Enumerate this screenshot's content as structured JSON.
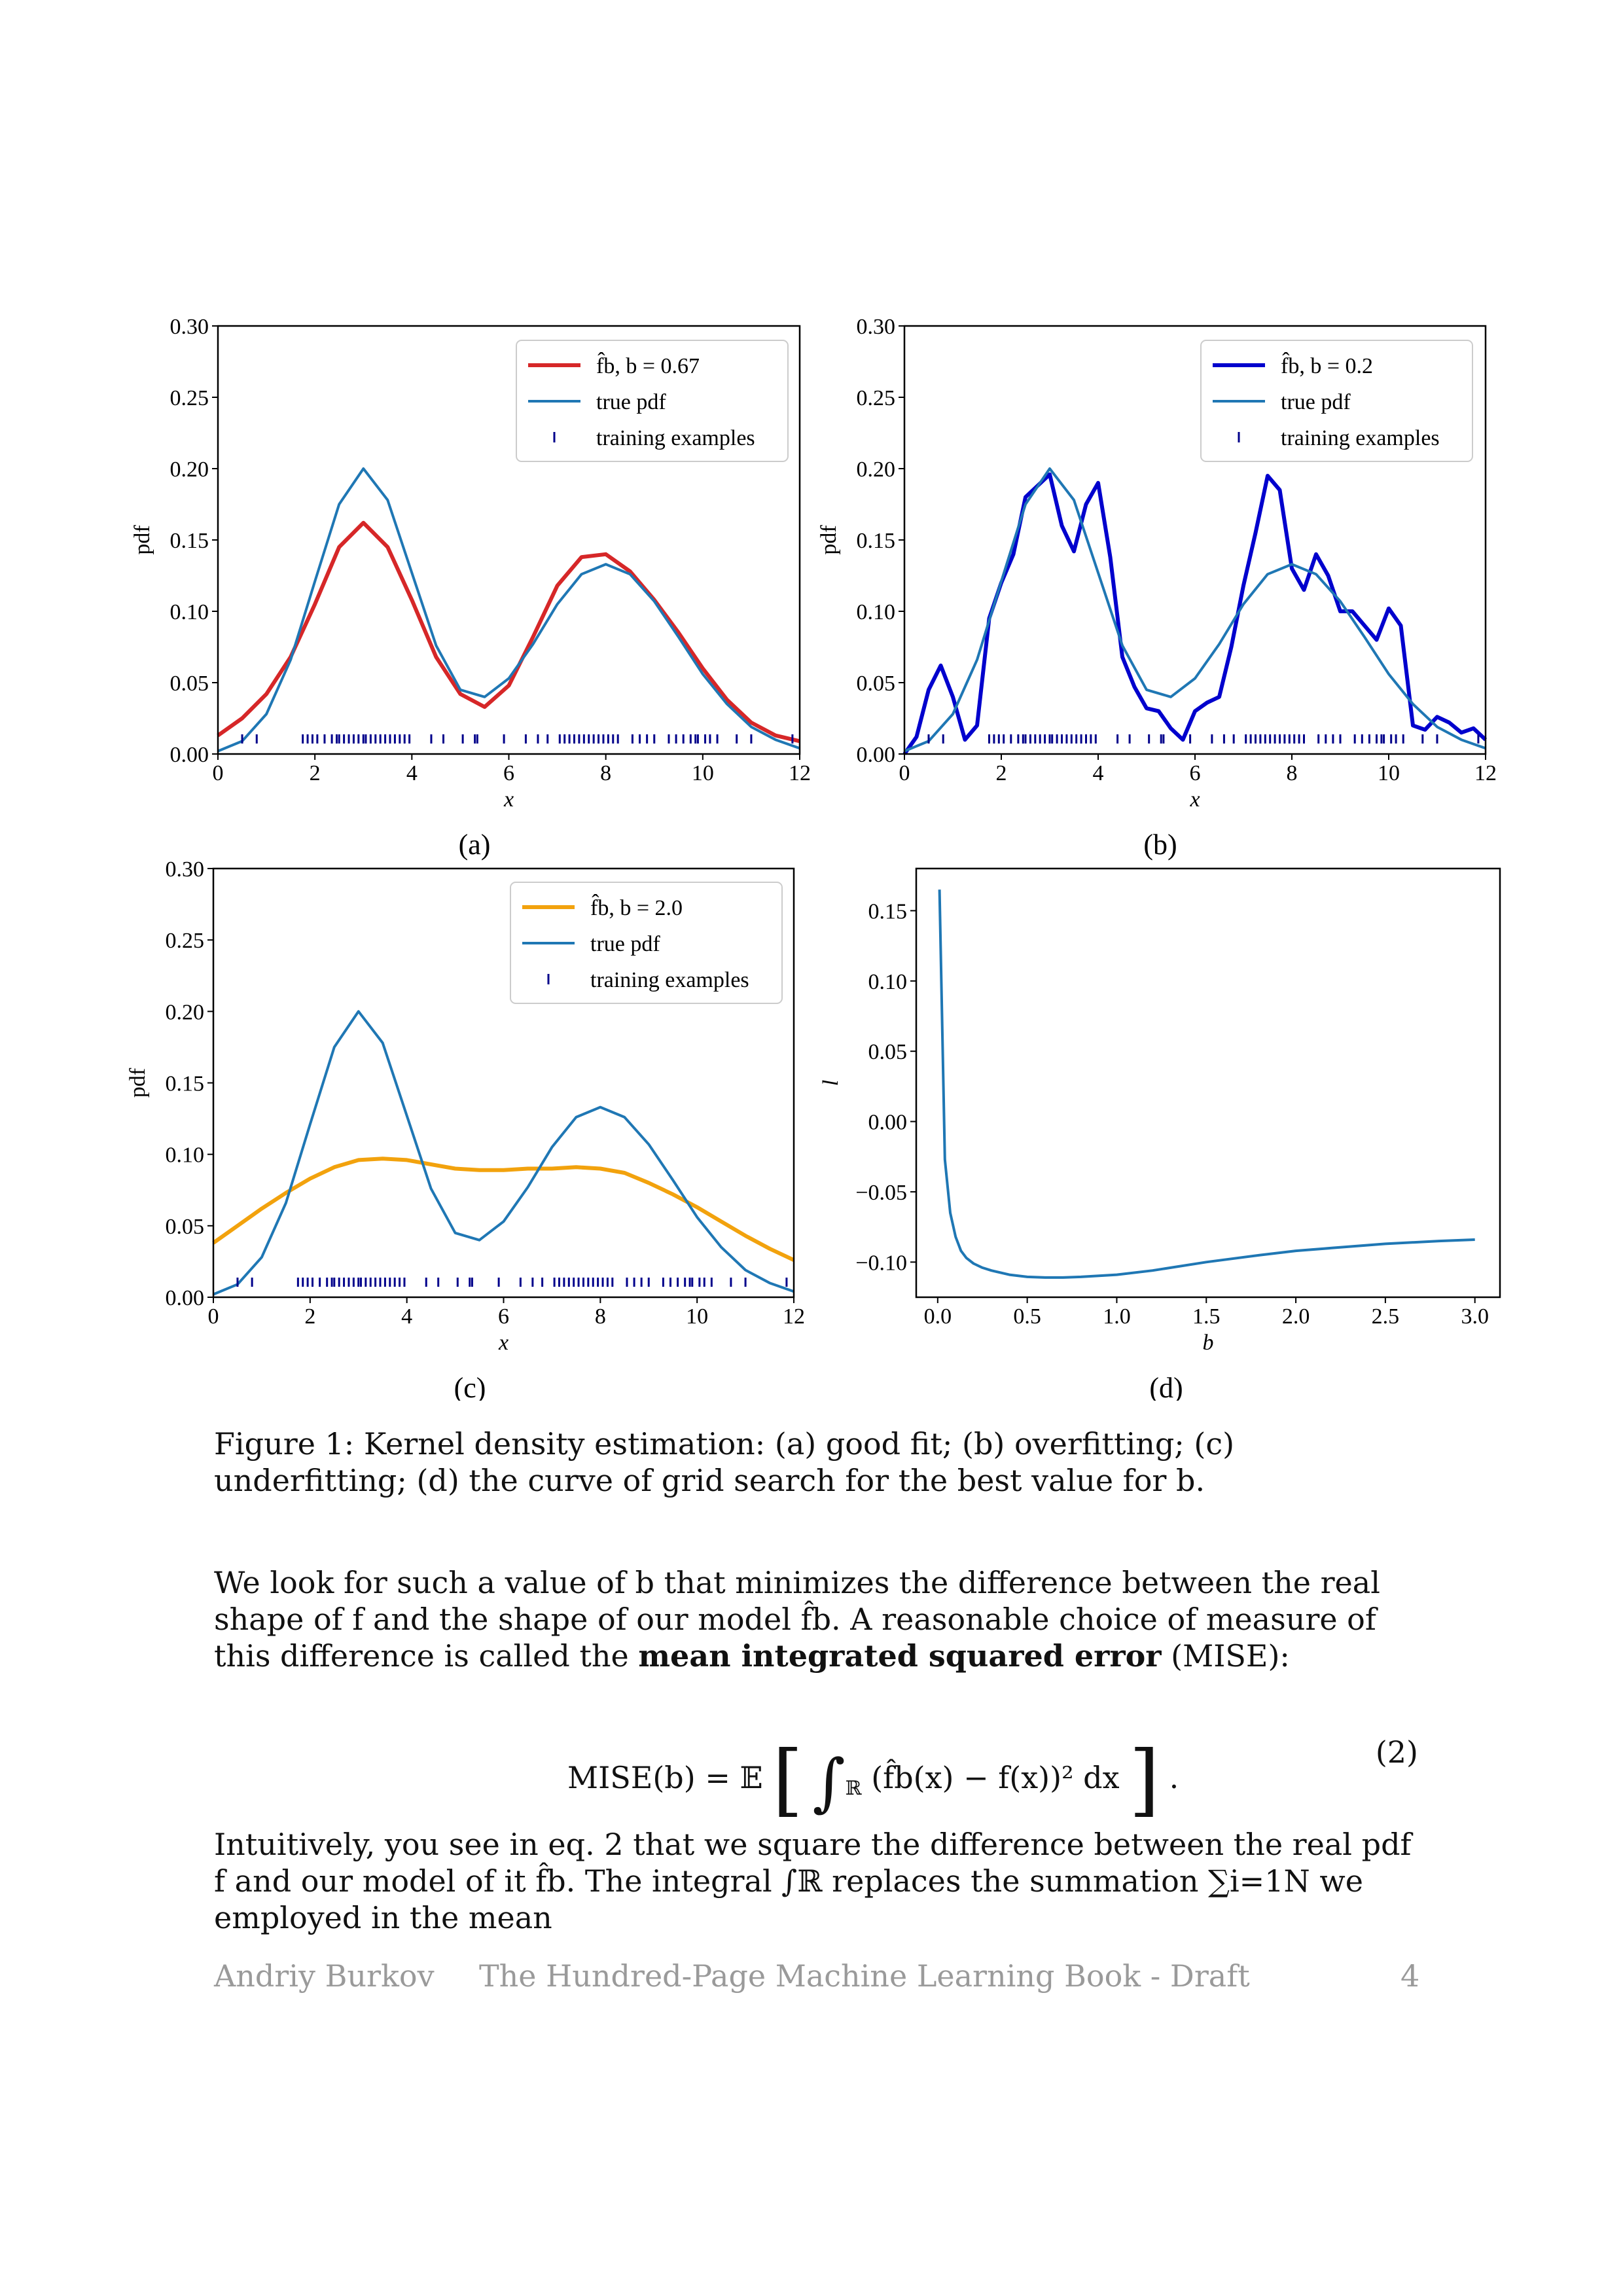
{
  "colors": {
    "true_pdf": "#1f77b4",
    "fit_a": "#d62728",
    "fit_b": "#0000cd",
    "fit_c": "#f2a20d",
    "ticks": "#00008b"
  },
  "training_examples": [
    0.5,
    0.8,
    1.75,
    1.85,
    1.95,
    2.05,
    2.2,
    2.35,
    2.45,
    2.5,
    2.6,
    2.7,
    2.8,
    2.9,
    3.0,
    3.05,
    3.15,
    3.25,
    3.35,
    3.45,
    3.55,
    3.65,
    3.75,
    3.85,
    3.95,
    4.4,
    4.65,
    5.05,
    5.3,
    5.35,
    5.9,
    6.35,
    6.6,
    6.8,
    7.05,
    7.15,
    7.25,
    7.35,
    7.45,
    7.55,
    7.65,
    7.75,
    7.85,
    7.95,
    8.05,
    8.15,
    8.25,
    8.55,
    8.7,
    8.85,
    9.0,
    9.3,
    9.45,
    9.6,
    9.75,
    9.85,
    9.9,
    10.05,
    10.15,
    10.3,
    10.7,
    11.0,
    11.85
  ],
  "chart_data": [
    {
      "type": "line",
      "panel_label": "(a)",
      "xlabel": "x",
      "ylabel": "pdf",
      "xlim": [
        0,
        12
      ],
      "ylim": [
        0,
        0.3
      ],
      "xticks": [
        "0",
        "2",
        "4",
        "6",
        "8",
        "10",
        "12"
      ],
      "yticks": [
        "0.00",
        "0.05",
        "0.10",
        "0.15",
        "0.20",
        "0.25",
        "0.30"
      ],
      "legend": {
        "placement": "top-right",
        "entries": [
          "f̂b, b = 0.67",
          "true pdf",
          "training examples"
        ]
      },
      "series": [
        {
          "name": "f̂b, b = 0.67",
          "color": "#d62728",
          "x": [
            0,
            0.5,
            1,
            1.5,
            2,
            2.5,
            3,
            3.5,
            4,
            4.5,
            5,
            5.5,
            6,
            6.5,
            7,
            7.5,
            8,
            8.5,
            9,
            9.5,
            10,
            10.5,
            11,
            11.5,
            12
          ],
          "y": [
            0.013,
            0.025,
            0.042,
            0.068,
            0.105,
            0.145,
            0.162,
            0.145,
            0.108,
            0.068,
            0.042,
            0.033,
            0.048,
            0.082,
            0.118,
            0.138,
            0.14,
            0.128,
            0.108,
            0.085,
            0.06,
            0.038,
            0.022,
            0.013,
            0.009
          ]
        },
        {
          "name": "true pdf",
          "color": "#1f77b4",
          "x": [
            0,
            0.5,
            1,
            1.5,
            2,
            2.5,
            3,
            3.5,
            4,
            4.5,
            5,
            5.5,
            6,
            6.5,
            7,
            7.5,
            8,
            8.5,
            9,
            9.5,
            10,
            10.5,
            11,
            11.5,
            12
          ],
          "y": [
            0.002,
            0.009,
            0.028,
            0.066,
            0.121,
            0.175,
            0.2,
            0.178,
            0.127,
            0.076,
            0.045,
            0.04,
            0.053,
            0.077,
            0.105,
            0.126,
            0.133,
            0.126,
            0.107,
            0.082,
            0.056,
            0.035,
            0.019,
            0.01,
            0.004
          ]
        }
      ]
    },
    {
      "type": "line",
      "panel_label": "(b)",
      "xlabel": "x",
      "ylabel": "pdf",
      "xlim": [
        0,
        12
      ],
      "ylim": [
        0,
        0.3
      ],
      "xticks": [
        "0",
        "2",
        "4",
        "6",
        "8",
        "10",
        "12"
      ],
      "yticks": [
        "0.00",
        "0.05",
        "0.10",
        "0.15",
        "0.20",
        "0.25",
        "0.30"
      ],
      "legend": {
        "placement": "top-right",
        "entries": [
          "f̂b, b = 0.2",
          "true pdf",
          "training examples"
        ]
      },
      "series": [
        {
          "name": "f̂b, b = 0.2",
          "color": "#0000cd",
          "x": [
            0,
            0.25,
            0.5,
            0.75,
            1,
            1.25,
            1.5,
            1.75,
            2,
            2.25,
            2.5,
            2.75,
            3,
            3.25,
            3.5,
            3.75,
            4,
            4.25,
            4.5,
            4.75,
            5,
            5.25,
            5.5,
            5.75,
            6,
            6.25,
            6.5,
            6.75,
            7,
            7.25,
            7.5,
            7.75,
            8,
            8.25,
            8.5,
            8.75,
            9,
            9.25,
            9.5,
            9.75,
            10,
            10.25,
            10.5,
            10.75,
            11,
            11.25,
            11.5,
            11.75,
            12
          ],
          "y": [
            0,
            0.012,
            0.045,
            0.062,
            0.04,
            0.01,
            0.02,
            0.095,
            0.12,
            0.14,
            0.18,
            0.188,
            0.196,
            0.16,
            0.142,
            0.175,
            0.19,
            0.138,
            0.068,
            0.047,
            0.032,
            0.03,
            0.018,
            0.01,
            0.03,
            0.036,
            0.04,
            0.075,
            0.118,
            0.155,
            0.195,
            0.185,
            0.13,
            0.115,
            0.14,
            0.125,
            0.1,
            0.1,
            0.09,
            0.08,
            0.102,
            0.09,
            0.02,
            0.017,
            0.026,
            0.022,
            0.015,
            0.018,
            0.01
          ]
        },
        {
          "name": "true pdf",
          "color": "#1f77b4",
          "x": [
            0,
            0.5,
            1,
            1.5,
            2,
            2.5,
            3,
            3.5,
            4,
            4.5,
            5,
            5.5,
            6,
            6.5,
            7,
            7.5,
            8,
            8.5,
            9,
            9.5,
            10,
            10.5,
            11,
            11.5,
            12
          ],
          "y": [
            0.002,
            0.009,
            0.028,
            0.066,
            0.121,
            0.175,
            0.2,
            0.178,
            0.127,
            0.076,
            0.045,
            0.04,
            0.053,
            0.077,
            0.105,
            0.126,
            0.133,
            0.126,
            0.107,
            0.082,
            0.056,
            0.035,
            0.019,
            0.01,
            0.004
          ]
        }
      ]
    },
    {
      "type": "line",
      "panel_label": "(c)",
      "xlabel": "x",
      "ylabel": "pdf",
      "xlim": [
        0,
        12
      ],
      "ylim": [
        0,
        0.3
      ],
      "xticks": [
        "0",
        "2",
        "4",
        "6",
        "8",
        "10",
        "12"
      ],
      "yticks": [
        "0.00",
        "0.05",
        "0.10",
        "0.15",
        "0.20",
        "0.25",
        "0.30"
      ],
      "legend": {
        "placement": "top-right",
        "entries": [
          "f̂b, b = 2.0",
          "true pdf",
          "training examples"
        ]
      },
      "series": [
        {
          "name": "f̂b, b = 2.0",
          "color": "#f2a20d",
          "x": [
            0,
            0.5,
            1,
            1.5,
            2,
            2.5,
            3,
            3.5,
            4,
            4.5,
            5,
            5.5,
            6,
            6.5,
            7,
            7.5,
            8,
            8.5,
            9,
            9.5,
            10,
            10.5,
            11,
            11.5,
            12
          ],
          "y": [
            0.038,
            0.05,
            0.062,
            0.073,
            0.083,
            0.091,
            0.096,
            0.097,
            0.096,
            0.093,
            0.09,
            0.089,
            0.089,
            0.09,
            0.09,
            0.091,
            0.09,
            0.087,
            0.08,
            0.072,
            0.063,
            0.053,
            0.043,
            0.034,
            0.026
          ]
        },
        {
          "name": "true pdf",
          "color": "#1f77b4",
          "x": [
            0,
            0.5,
            1,
            1.5,
            2,
            2.5,
            3,
            3.5,
            4,
            4.5,
            5,
            5.5,
            6,
            6.5,
            7,
            7.5,
            8,
            8.5,
            9,
            9.5,
            10,
            10.5,
            11,
            11.5,
            12
          ],
          "y": [
            0.002,
            0.009,
            0.028,
            0.066,
            0.121,
            0.175,
            0.2,
            0.178,
            0.127,
            0.076,
            0.045,
            0.04,
            0.053,
            0.077,
            0.105,
            0.126,
            0.133,
            0.126,
            0.107,
            0.082,
            0.056,
            0.035,
            0.019,
            0.01,
            0.004
          ]
        }
      ]
    },
    {
      "type": "line",
      "panel_label": "(d)",
      "xlabel": "b",
      "ylabel": "l",
      "xlim": [
        -0.12,
        3.14
      ],
      "ylim": [
        -0.125,
        0.18
      ],
      "xticks": [
        "0.0",
        "0.5",
        "1.0",
        "1.5",
        "2.0",
        "2.5",
        "3.0"
      ],
      "yticks": [
        "−0.10",
        "−0.05",
        "0.00",
        "0.05",
        "0.10",
        "0.15"
      ],
      "series": [
        {
          "color": "#1f77b4",
          "x": [
            0.01,
            0.04,
            0.07,
            0.1,
            0.13,
            0.16,
            0.2,
            0.25,
            0.3,
            0.4,
            0.5,
            0.6,
            0.7,
            0.8,
            1.0,
            1.2,
            1.5,
            1.8,
            2.0,
            2.2,
            2.5,
            2.8,
            3.0
          ],
          "y": [
            0.165,
            -0.027,
            -0.065,
            -0.082,
            -0.092,
            -0.097,
            -0.101,
            -0.104,
            -0.106,
            -0.109,
            -0.1105,
            -0.111,
            -0.111,
            -0.1105,
            -0.109,
            -0.106,
            -0.1,
            -0.095,
            -0.092,
            -0.09,
            -0.087,
            -0.085,
            -0.084
          ]
        }
      ]
    }
  ],
  "caption": {
    "label": "Figure 1:",
    "text": "Kernel density estimation: (a) good fit; (b) overfitting; (c) underfitting; (d) the curve of grid search for the best value for b."
  },
  "paragraph1": {
    "part1": "We look for such a value of b that minimizes the difference between the real shape of f and the shape of our model f̂b. A reasonable choice of measure of this difference is called the ",
    "bold": "mean integrated squared error",
    "part2": " (MISE):"
  },
  "equation": {
    "lhs": "MISE(b) = 𝔼",
    "integrand": "(f̂b(x) − f(x))² dx",
    "number": "(2)"
  },
  "paragraph2": {
    "text": "Intuitively, you see in eq. 2 that we square the difference between the real pdf f and our model of it f̂b. The integral ∫ℝ replaces the summation ∑i=1N we employed in the mean"
  },
  "footer": {
    "author": "Andriy Burkov",
    "book": "The Hundred-Page Machine Learning Book - Draft",
    "page": "4"
  }
}
